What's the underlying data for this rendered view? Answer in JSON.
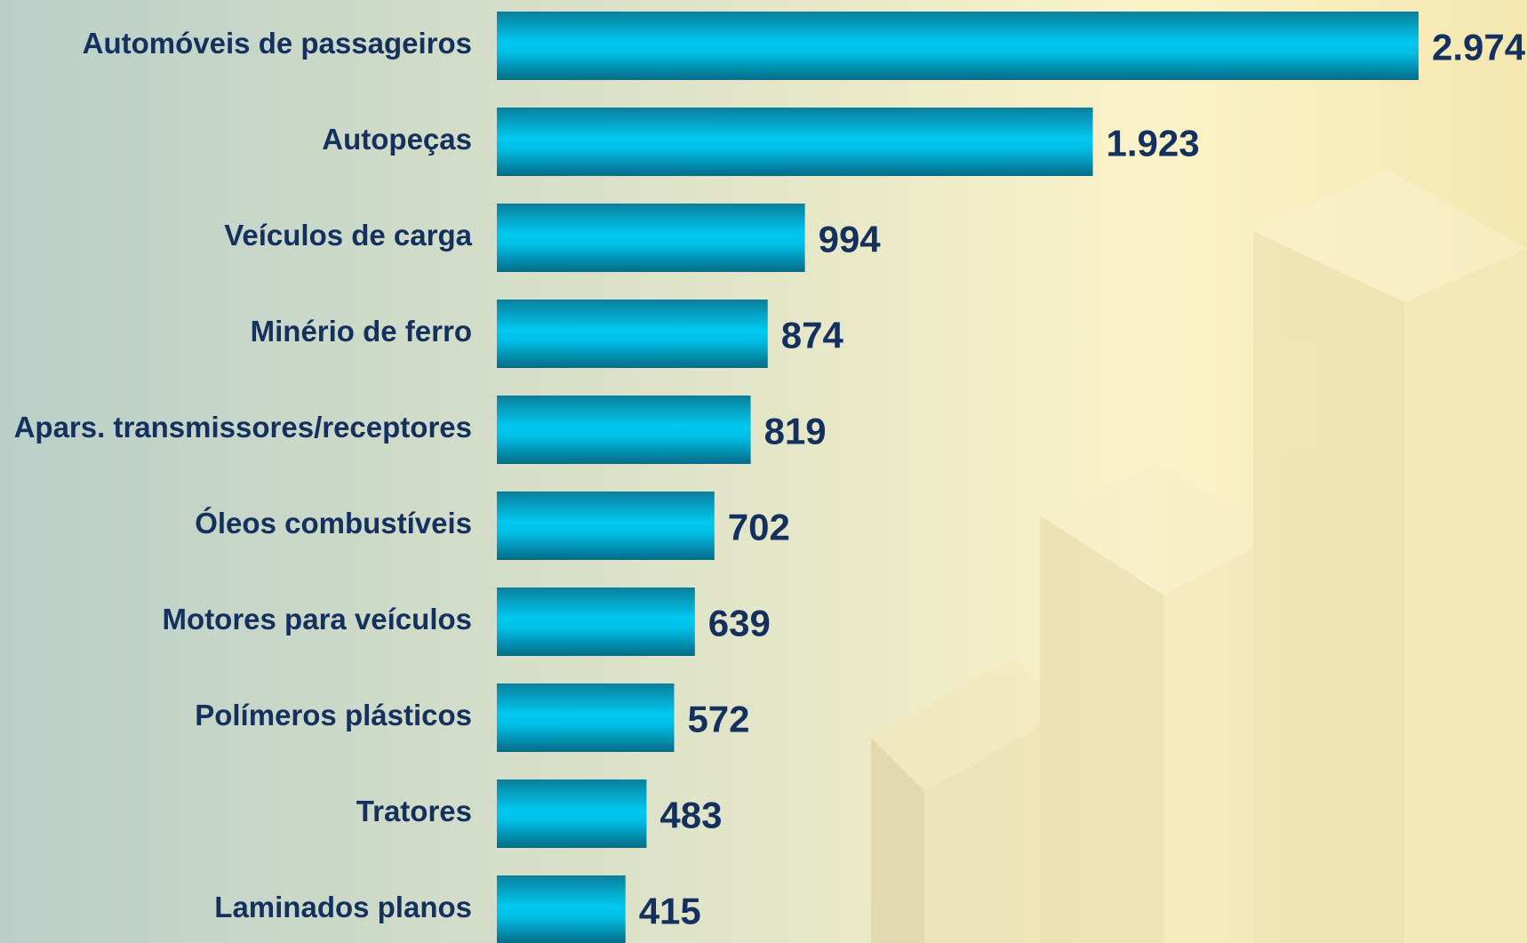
{
  "chart_data": {
    "type": "bar",
    "orientation": "horizontal",
    "categories": [
      "Automóveis de passageiros",
      "Autopeças",
      "Veículos de carga",
      "Minério de ferro",
      "Apars. transmissores/receptores",
      "Óleos combustíveis",
      "Motores para veículos",
      "Polímeros plásticos",
      "Tratores",
      "Laminados planos"
    ],
    "values": [
      2974,
      1923,
      994,
      874,
      819,
      702,
      639,
      572,
      483,
      415
    ],
    "value_labels": [
      "2.974",
      "1.923",
      "994",
      "874",
      "819",
      "702",
      "639",
      "572",
      "483",
      "415"
    ],
    "color": "#00c8f0"
  }
}
